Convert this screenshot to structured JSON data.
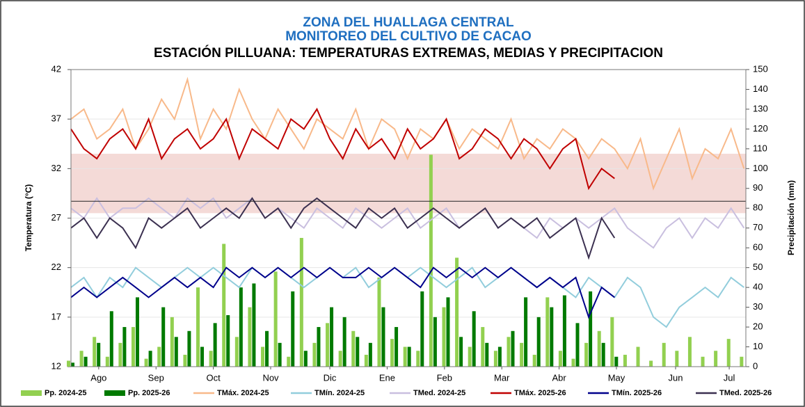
{
  "chart_data": {
    "type": "line",
    "title": "ZONA DEL HUALLAGA CENTRAL",
    "subtitle": "MONITOREO DEL CULTIVO DE CACAO",
    "title2": "ESTACIÓN PILLUANA: TEMPERATURAS EXTREMAS, MEDIAS Y PRECIPITACION",
    "ylabel": "Temperatura (°C)",
    "y2label": "Precipitación (mm)",
    "x": [
      0,
      7,
      14,
      21,
      28,
      35,
      42,
      49,
      56,
      63,
      70,
      77,
      84,
      91,
      98,
      105,
      112,
      119,
      126,
      133,
      140,
      147,
      154,
      161,
      168,
      175,
      182,
      189,
      196,
      203,
      210,
      217,
      224,
      231,
      238,
      245,
      252,
      259,
      266,
      273,
      280,
      287,
      294,
      301,
      308,
      315,
      322,
      329,
      336,
      343,
      350,
      357,
      364
    ],
    "xlim": [
      0,
      365
    ],
    "xticks": [
      {
        "value": 15,
        "label": "Ago"
      },
      {
        "value": 46,
        "label": "Sep"
      },
      {
        "value": 77,
        "label": "Oct"
      },
      {
        "value": 108,
        "label": "Nov"
      },
      {
        "value": 140,
        "label": "Dic"
      },
      {
        "value": 171,
        "label": "Ene"
      },
      {
        "value": 202,
        "label": "Feb"
      },
      {
        "value": 233,
        "label": "Mar"
      },
      {
        "value": 264,
        "label": "Abr"
      },
      {
        "value": 295,
        "label": "May"
      },
      {
        "value": 327,
        "label": "Jun"
      },
      {
        "value": 356,
        "label": "Jul"
      }
    ],
    "ylim": [
      12,
      42
    ],
    "yticks": [
      12,
      17,
      22,
      27,
      32,
      37,
      42
    ],
    "y2lim": [
      0,
      150
    ],
    "y2ticks": [
      0,
      10,
      20,
      30,
      40,
      50,
      60,
      70,
      80,
      90,
      100,
      110,
      120,
      130,
      140,
      150
    ],
    "grid": true,
    "shaded_range": [
      27.5,
      33.5
    ],
    "shaded_color": "#f2d4d0",
    "reference_line": 28.7,
    "series": [
      {
        "name": "Pp. 2024-25",
        "type": "bar",
        "axis": "y2",
        "color": "#92d050",
        "values": [
          3,
          8,
          15,
          5,
          12,
          20,
          4,
          10,
          25,
          6,
          40,
          8,
          62,
          15,
          30,
          10,
          48,
          5,
          65,
          12,
          22,
          8,
          18,
          6,
          45,
          14,
          10,
          8,
          107,
          30,
          55,
          10,
          20,
          8,
          15,
          12,
          6,
          35,
          8,
          4,
          12,
          18,
          25,
          6,
          10,
          3,
          12,
          8,
          15,
          5,
          8,
          14,
          5
        ]
      },
      {
        "name": "Pp. 2025-26",
        "type": "bar",
        "axis": "y2",
        "color": "#007a00",
        "values": [
          2,
          5,
          12,
          28,
          20,
          35,
          8,
          30,
          15,
          18,
          10,
          22,
          26,
          40,
          42,
          18,
          12,
          38,
          8,
          20,
          30,
          25,
          15,
          12,
          30,
          20,
          10,
          38,
          25,
          35,
          15,
          28,
          12,
          10,
          18,
          35,
          25,
          30,
          36,
          22,
          38,
          12,
          5,
          null,
          null,
          null,
          null,
          null,
          null,
          null,
          null,
          null,
          null
        ]
      },
      {
        "name": "TMáx. 2024-25",
        "type": "line",
        "color": "#f8b98a",
        "values": [
          37,
          38,
          35,
          36,
          38,
          34,
          36,
          39,
          37,
          41,
          35,
          38,
          36,
          40,
          37,
          35,
          38,
          36,
          34,
          37,
          36,
          35,
          38,
          34,
          37,
          36,
          33,
          36,
          35,
          37,
          34,
          36,
          35,
          34,
          37,
          33,
          35,
          34,
          36,
          35,
          33,
          35,
          34,
          32,
          35,
          30,
          33,
          36,
          31,
          34,
          33,
          36,
          32
        ]
      },
      {
        "name": "TMín. 2024-25",
        "type": "line",
        "color": "#92cddc",
        "values": [
          20,
          21,
          19,
          21,
          20,
          22,
          21,
          20,
          21,
          22,
          21,
          22,
          21,
          20,
          22,
          21,
          22,
          21,
          20,
          21,
          22,
          21,
          22,
          20,
          21,
          22,
          21,
          22,
          21,
          20,
          21,
          22,
          20,
          21,
          22,
          21,
          20,
          21,
          20,
          19,
          21,
          20,
          19,
          21,
          20,
          17,
          16,
          18,
          19,
          20,
          19,
          21,
          20
        ]
      },
      {
        "name": "TMed. 2024-25",
        "type": "line",
        "color": "#c9bfdf",
        "values": [
          28,
          27,
          29,
          27,
          28,
          28,
          29,
          28,
          27,
          29,
          28,
          29,
          27,
          28,
          29,
          27,
          28,
          27,
          26,
          28,
          27,
          26,
          28,
          27,
          26,
          27,
          28,
          26,
          27,
          28,
          26,
          27,
          28,
          26,
          27,
          26,
          25,
          27,
          26,
          27,
          26,
          27,
          28,
          26,
          25,
          24,
          26,
          27,
          25,
          27,
          26,
          28,
          26
        ]
      },
      {
        "name": "TMáx. 2025-26",
        "type": "line",
        "color": "#c00000",
        "values": [
          36,
          34,
          33,
          35,
          36,
          34,
          37,
          33,
          35,
          36,
          34,
          35,
          37,
          33,
          36,
          35,
          34,
          37,
          36,
          38,
          35,
          33,
          36,
          34,
          35,
          33,
          36,
          34,
          35,
          37,
          33,
          34,
          36,
          35,
          33,
          35,
          34,
          32,
          34,
          35,
          30,
          32,
          31,
          null,
          null,
          null,
          null,
          null,
          null,
          null,
          null,
          null,
          null
        ]
      },
      {
        "name": "TMín. 2025-26",
        "type": "line",
        "color": "#00008b",
        "values": [
          19,
          20,
          19,
          20,
          21,
          20,
          19,
          20,
          21,
          20,
          21,
          20,
          22,
          21,
          22,
          21,
          22,
          21,
          22,
          21,
          22,
          21,
          21,
          22,
          21,
          22,
          21,
          20,
          22,
          21,
          22,
          21,
          22,
          21,
          22,
          21,
          20,
          21,
          20,
          21,
          17,
          20,
          19,
          null,
          null,
          null,
          null,
          null,
          null,
          null,
          null,
          null,
          null
        ]
      },
      {
        "name": "TMed. 2025-26",
        "type": "line",
        "color": "#3b3050",
        "values": [
          26,
          27,
          25,
          27,
          26,
          24,
          27,
          26,
          27,
          28,
          26,
          27,
          28,
          27,
          29,
          27,
          28,
          26,
          28,
          29,
          28,
          27,
          26,
          28,
          27,
          28,
          26,
          27,
          28,
          27,
          26,
          27,
          28,
          26,
          27,
          26,
          27,
          25,
          26,
          27,
          23,
          27,
          25,
          null,
          null,
          null,
          null,
          null,
          null,
          null,
          null,
          null,
          null
        ]
      }
    ]
  }
}
